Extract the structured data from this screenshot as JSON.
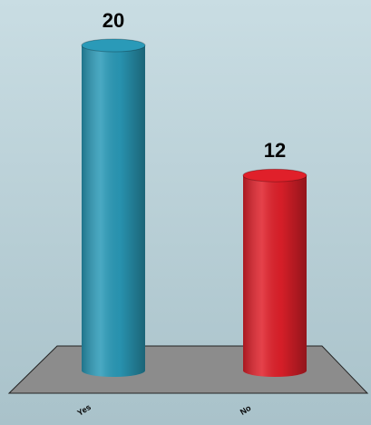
{
  "chart_data": {
    "type": "bar3d",
    "categories": [
      "Yes",
      "No"
    ],
    "values": [
      20,
      12
    ],
    "colors": [
      "#2a9ab8",
      "#e0202a"
    ]
  }
}
